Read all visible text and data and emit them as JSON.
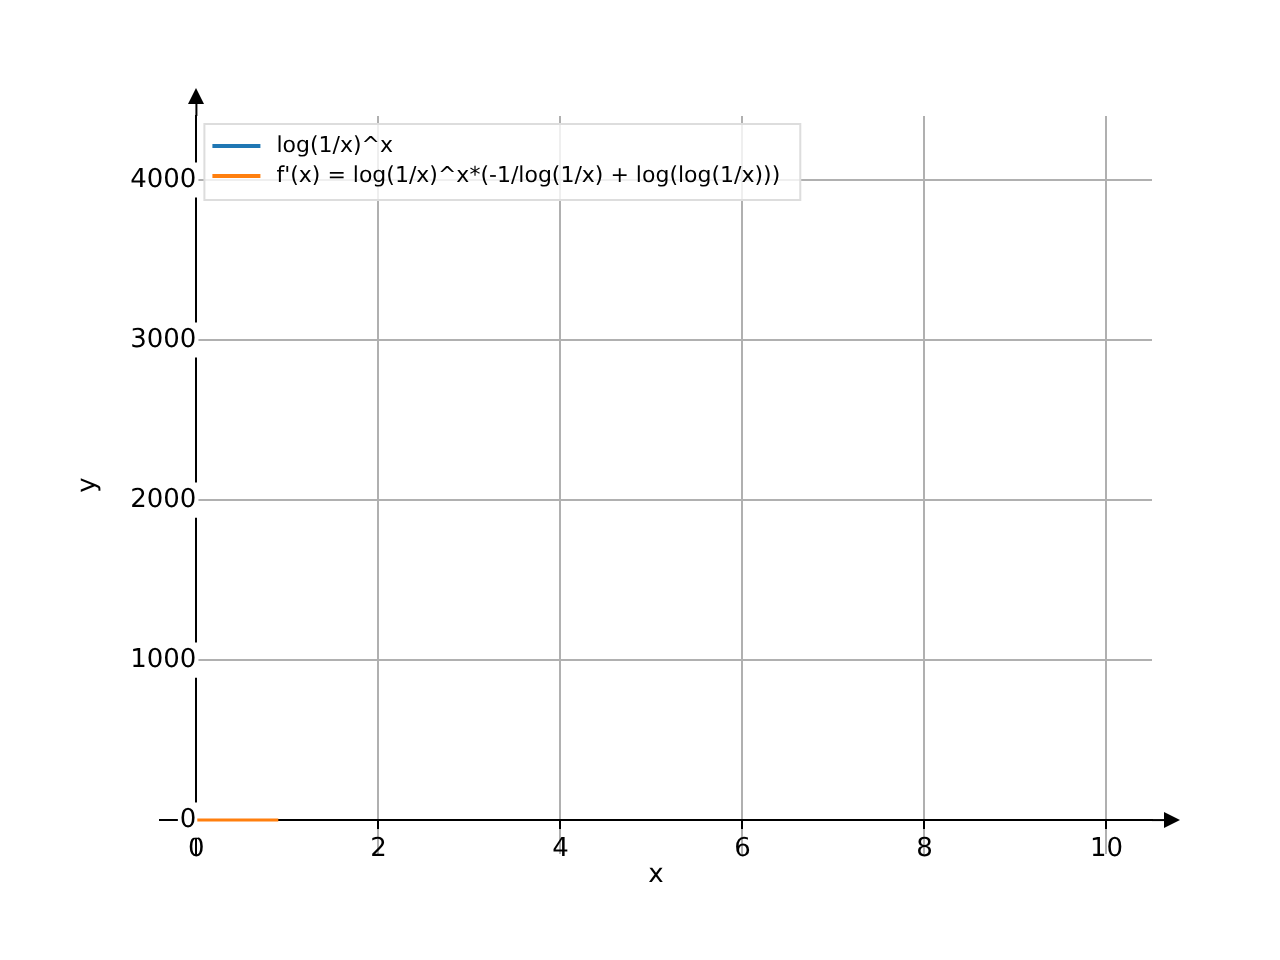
{
  "chart_data": {
    "type": "line",
    "xlabel": "x",
    "ylabel": "y",
    "x": [
      0.01,
      0.9
    ],
    "series": [
      {
        "name": "log(1/x)^x",
        "color": "#1f77b4",
        "values": [
          null,
          null
        ]
      },
      {
        "name": "f'(x) = log(1/x)^x*(-1/log(1/x) + log(log(1/x)))",
        "color": "#ff7f0e",
        "values": [
          0,
          0
        ]
      }
    ],
    "xlim": [
      -0.4,
      10.5
    ],
    "ylim": [
      -212,
      4400
    ],
    "xticks": [
      0,
      2,
      4,
      6,
      8,
      10
    ],
    "yticks": [
      0,
      1000,
      2000,
      3000,
      4000
    ],
    "grid": true,
    "legend": "top left",
    "marker": "none",
    "line_style": "solid"
  }
}
